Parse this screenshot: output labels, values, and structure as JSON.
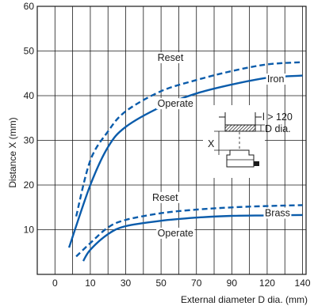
{
  "chart_data": {
    "type": "line",
    "xlabel": "External diameter D dia. (mm)",
    "ylabel": "Distance X (mm)",
    "x_ticks": [
      0,
      10,
      30,
      50,
      70,
      90,
      120,
      140
    ],
    "y_ticks": [
      10,
      20,
      30,
      40,
      50,
      60
    ],
    "ylim": [
      0,
      60
    ],
    "grid": true,
    "series": [
      {
        "name": "Reset",
        "group": "Iron",
        "style": "dashed",
        "color": "#0b5cab",
        "points": [
          [
            6,
            13
          ],
          [
            10,
            25.5
          ],
          [
            20,
            32
          ],
          [
            30,
            36.5
          ],
          [
            50,
            41
          ],
          [
            70,
            43.5
          ],
          [
            90,
            45.5
          ],
          [
            120,
            47
          ],
          [
            140,
            47.5
          ]
        ]
      },
      {
        "name": "Operate",
        "group": "Iron",
        "style": "solid",
        "color": "#0b5cab",
        "points": [
          [
            4,
            6
          ],
          [
            10,
            20
          ],
          [
            20,
            28.5
          ],
          [
            30,
            33
          ],
          [
            50,
            37.5
          ],
          [
            70,
            40.5
          ],
          [
            90,
            42.5
          ],
          [
            120,
            44
          ],
          [
            140,
            44.5
          ]
        ]
      },
      {
        "name": "Reset",
        "group": "Brass",
        "style": "dashed",
        "color": "#0b5cab",
        "points": [
          [
            6,
            4
          ],
          [
            10,
            7
          ],
          [
            20,
            10.5
          ],
          [
            30,
            12.2
          ],
          [
            50,
            13.7
          ],
          [
            70,
            14.5
          ],
          [
            90,
            15
          ],
          [
            120,
            15.3
          ],
          [
            140,
            15.5
          ]
        ]
      },
      {
        "name": "Operate",
        "group": "Brass",
        "style": "solid",
        "color": "#0b5cab",
        "points": [
          [
            8,
            3
          ],
          [
            10,
            5.5
          ],
          [
            20,
            9
          ],
          [
            30,
            10.8
          ],
          [
            50,
            12
          ],
          [
            70,
            12.7
          ],
          [
            90,
            13.1
          ],
          [
            120,
            13.2
          ],
          [
            140,
            13.3
          ]
        ]
      }
    ],
    "annotations": [
      {
        "text": "Reset",
        "x": 48,
        "y": 47.8
      },
      {
        "text": "Operate",
        "x": 48,
        "y": 37.5
      },
      {
        "text": "Iron",
        "x": 120,
        "y": 43
      },
      {
        "text": "Reset",
        "x": 45,
        "y": 16.5
      },
      {
        "text": "Operate",
        "x": 48,
        "y": 8.5
      },
      {
        "text": "Brass",
        "x": 118,
        "y": 13
      }
    ],
    "inset_labels": {
      "length": "l > 120",
      "diameter": "D dia.",
      "distance": "X"
    }
  }
}
